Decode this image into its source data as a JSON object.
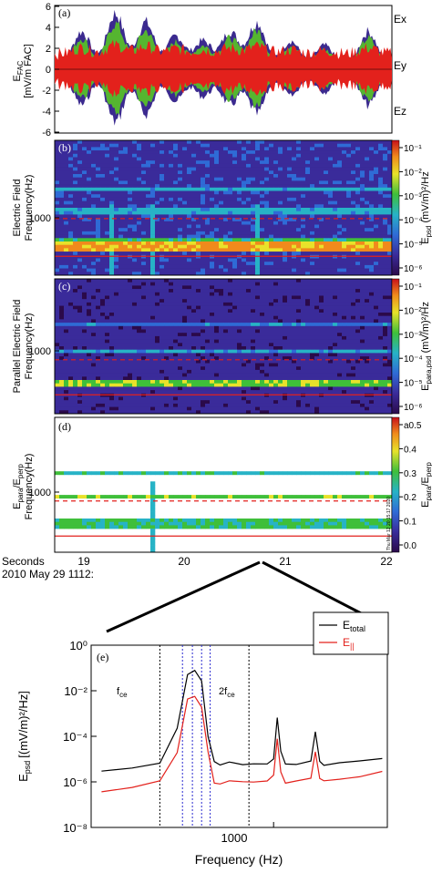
{
  "colors": {
    "ex": "#3b2a8f",
    "ey": "#55b530",
    "ez": "#e3211c",
    "total_line": "#000000",
    "parallel_line": "#e3211c",
    "dotted_black": "#000000",
    "dotted_blue": "#2a2ad0"
  },
  "panels": {
    "a": {
      "tag": "(a)",
      "ylabel_main": "E",
      "ylabel_sub": "FAC",
      "ylabel_units": "[mV/m FAC]",
      "legend": [
        "Ex",
        "Ey",
        "Ez"
      ],
      "ticks": [
        "6",
        "4",
        "2",
        "0",
        "-2",
        "-4",
        "-6"
      ]
    },
    "b": {
      "tag": "(b)",
      "ylabel_line1": "Electric Field",
      "ylabel_line2": "Frequency(Hz)",
      "ytick": "1000",
      "cbar_label_main": "E",
      "cbar_label_sub": "psd",
      "cbar_label_units": "(mV/m)²/Hz",
      "cbar_ticks": [
        "10⁻¹",
        "10⁻²",
        "10⁻³",
        "10⁻⁴",
        "10⁻⁵",
        "10⁻⁶"
      ]
    },
    "c": {
      "tag": "(c)",
      "ylabel_line1": "Parallel Electric Field",
      "ylabel_line2": "Frequency(Hz)",
      "ytick": "1000",
      "cbar_label_main": "E",
      "cbar_label_sub": "para,psd",
      "cbar_label_units": "(mV/m)²/Hz",
      "cbar_ticks": [
        "10⁻¹",
        "10⁻²",
        "10⁻³",
        "10⁻⁴",
        "10⁻⁵",
        "10⁻⁶"
      ]
    },
    "d": {
      "tag": "(d)",
      "ylabel_main": "E",
      "ylabel_sub1": "para",
      "ylabel_mid": "/E",
      "ylabel_sub2": "perp",
      "ylabel_line2": "Frequency(Hz)",
      "ytick": "1000",
      "cbar_label_main": "E",
      "cbar_label_sub1": "para",
      "cbar_label_mid": "/E",
      "cbar_label_sub2": "perp",
      "cbar_ticks": [
        "a0.5",
        "0.4",
        "0.3",
        "0.2",
        "0.1",
        "0.0"
      ],
      "stamp": "Thu Mar 12 20:15:17 2020"
    },
    "time_axis": {
      "label1": "Seconds",
      "label2": "2010 May 29 1112:",
      "ticks": [
        "19",
        "20",
        "21",
        "22"
      ]
    },
    "e": {
      "tag": "(e)",
      "ylabel_main": "E",
      "ylabel_sub": "psd",
      "ylabel_units": "[(mV/m)²/Hz]",
      "xlabel": "Frequency (Hz)",
      "yticks": [
        "10⁰",
        "10⁻²",
        "10⁻⁴",
        "10⁻⁶",
        "10⁻⁸"
      ],
      "xtick": "1000",
      "fce_main": "f",
      "fce_sub": "ce",
      "two_fce_main": "2f",
      "two_fce_sub": "ce",
      "legend_total_main": "E",
      "legend_total_sub": "total",
      "legend_par_main": "E",
      "legend_par_sub": "||"
    }
  },
  "chart_data": {
    "type": "line",
    "panel": "(e)",
    "xlabel": "Frequency (Hz)",
    "xscale": "log",
    "yscale": "log",
    "ylim": [
      1e-08,
      1
    ],
    "series": [
      {
        "name": "E_total",
        "x": [
          250,
          320,
          400,
          460,
          500,
          530,
          560,
          590,
          620,
          650,
          700,
          780,
          850,
          950,
          1000,
          1030,
          1060,
          1100,
          1200,
          1350,
          1400,
          1450,
          1500,
          1700,
          2000,
          2400
        ],
        "values": [
          3e-06,
          4e-06,
          6e-06,
          0.0002,
          0.05,
          0.08,
          0.03,
          0.0001,
          8e-06,
          6e-06,
          8e-06,
          6e-06,
          6e-06,
          6e-06,
          1e-05,
          0.0006,
          2e-05,
          6e-06,
          6e-06,
          8e-06,
          0.00015,
          8e-06,
          6e-06,
          7e-06,
          8e-06,
          1e-05
        ]
      },
      {
        "name": "E_||",
        "x": [
          250,
          320,
          400,
          460,
          500,
          530,
          560,
          590,
          620,
          650,
          700,
          780,
          850,
          950,
          1000,
          1030,
          1060,
          1100,
          1200,
          1350,
          1400,
          1450,
          1500,
          1700,
          2000,
          2400
        ],
        "values": [
          4e-07,
          6e-07,
          1e-06,
          2e-05,
          0.004,
          0.006,
          0.002,
          2e-05,
          1e-06,
          8e-07,
          1.2e-06,
          1e-06,
          1e-06,
          1e-06,
          2e-06,
          8e-05,
          3e-06,
          1e-06,
          1e-06,
          1.5e-06,
          2e-05,
          1.5e-06,
          1e-06,
          1.2e-06,
          1.5e-06,
          3e-06
        ]
      }
    ],
    "annotations": [
      "f_ce",
      "2f_ce"
    ]
  }
}
